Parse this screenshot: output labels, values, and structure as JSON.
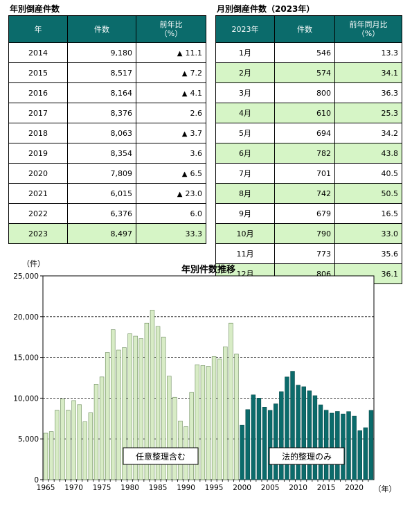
{
  "annual": {
    "title": "年別倒産件数",
    "headers": [
      "年",
      "件数",
      "前年比",
      "（%）"
    ],
    "rows": [
      {
        "year": "2014",
        "count": "9,180",
        "mark": "▲",
        "change": "11.1",
        "highlight": false
      },
      {
        "year": "2015",
        "count": "8,517",
        "mark": "▲",
        "change": "7.2",
        "highlight": false
      },
      {
        "year": "2016",
        "count": "8,164",
        "mark": "▲",
        "change": "4.1",
        "highlight": false
      },
      {
        "year": "2017",
        "count": "8,376",
        "mark": "",
        "change": "2.6",
        "highlight": false
      },
      {
        "year": "2018",
        "count": "8,063",
        "mark": "▲",
        "change": "3.7",
        "highlight": false
      },
      {
        "year": "2019",
        "count": "8,354",
        "mark": "",
        "change": "3.6",
        "highlight": false
      },
      {
        "year": "2020",
        "count": "7,809",
        "mark": "▲",
        "change": "6.5",
        "highlight": false
      },
      {
        "year": "2021",
        "count": "6,015",
        "mark": "▲",
        "change": "23.0",
        "highlight": false
      },
      {
        "year": "2022",
        "count": "6,376",
        "mark": "",
        "change": "6.0",
        "highlight": false
      },
      {
        "year": "2023",
        "count": "8,497",
        "mark": "",
        "change": "33.3",
        "highlight": true
      }
    ]
  },
  "monthly": {
    "title": "月別倒産件数（2023年）",
    "headers": [
      "2023年",
      "件数",
      "前年同月比",
      "（%）"
    ],
    "rows": [
      {
        "month": "1月",
        "count": "546",
        "change": "13.3",
        "highlight": false
      },
      {
        "month": "2月",
        "count": "574",
        "change": "34.1",
        "highlight": true
      },
      {
        "month": "3月",
        "count": "800",
        "change": "36.3",
        "highlight": false
      },
      {
        "month": "4月",
        "count": "610",
        "change": "25.3",
        "highlight": true
      },
      {
        "month": "5月",
        "count": "694",
        "change": "34.2",
        "highlight": false
      },
      {
        "month": "6月",
        "count": "782",
        "change": "43.8",
        "highlight": true
      },
      {
        "month": "7月",
        "count": "701",
        "change": "40.5",
        "highlight": false
      },
      {
        "month": "8月",
        "count": "742",
        "change": "50.5",
        "highlight": true
      },
      {
        "month": "9月",
        "count": "679",
        "change": "16.5",
        "highlight": false
      },
      {
        "month": "10月",
        "count": "790",
        "change": "33.0",
        "highlight": true
      },
      {
        "month": "11月",
        "count": "773",
        "change": "35.6",
        "highlight": false
      },
      {
        "month": "12月",
        "count": "806",
        "change": "36.1",
        "highlight": true
      }
    ]
  },
  "chart_data": {
    "type": "bar",
    "title": "年別件数推移",
    "ylabel": "（件）",
    "xlabel": "（年）",
    "ylim": [
      0,
      25000
    ],
    "yticks": [
      "0",
      "5,000",
      "10,000",
      "15,000",
      "20,000",
      "25,000"
    ],
    "xticks": [
      "1965",
      "1970",
      "1975",
      "1980",
      "1985",
      "1990",
      "1995",
      "2000",
      "2005",
      "2010",
      "2015",
      "2020"
    ],
    "annotations": [
      "任意整理含む",
      "法的整理のみ"
    ],
    "colors": {
      "voluntary": "#d8ecc6",
      "legal": "#0b6b6b",
      "grid": "#000000"
    },
    "x": [
      1965,
      1966,
      1967,
      1968,
      1969,
      1970,
      1971,
      1972,
      1973,
      1974,
      1975,
      1976,
      1977,
      1978,
      1979,
      1980,
      1981,
      1982,
      1983,
      1984,
      1985,
      1986,
      1987,
      1988,
      1989,
      1990,
      1991,
      1992,
      1993,
      1994,
      1995,
      1996,
      1997,
      1998,
      1999,
      2000,
      2001,
      2002,
      2003,
      2004,
      2005,
      2006,
      2007,
      2008,
      2009,
      2010,
      2011,
      2012,
      2013,
      2014,
      2015,
      2016,
      2017,
      2018,
      2019,
      2020,
      2021,
      2022,
      2023
    ],
    "series": [
      {
        "name": "任意整理含む",
        "values": [
          5700,
          5900,
          8500,
          9900,
          8500,
          9700,
          9200,
          7100,
          8200,
          11700,
          12600,
          15600,
          18400,
          15900,
          16200,
          17900,
          17600,
          17300,
          19200,
          20800,
          18800,
          17500,
          12700,
          10100,
          7200,
          6500,
          10700,
          14100,
          14000,
          13900,
          15100,
          14800,
          16300,
          19200,
          15400,
          null,
          null,
          null,
          null,
          null,
          null,
          null,
          null,
          null,
          null,
          null,
          null,
          null,
          null,
          null,
          null,
          null,
          null,
          null,
          null,
          null,
          null,
          null,
          null
        ]
      },
      {
        "name": "法的整理のみ",
        "values": [
          null,
          null,
          null,
          null,
          null,
          null,
          null,
          null,
          null,
          null,
          null,
          null,
          null,
          null,
          null,
          null,
          null,
          null,
          null,
          null,
          null,
          null,
          null,
          null,
          null,
          null,
          null,
          null,
          null,
          null,
          null,
          null,
          null,
          null,
          null,
          6700,
          8600,
          10400,
          10000,
          8900,
          8500,
          9300,
          10800,
          12600,
          13300,
          11600,
          11400,
          10900,
          10300,
          9180,
          8517,
          8164,
          8376,
          8063,
          8354,
          7809,
          6015,
          6376,
          8497
        ]
      }
    ]
  }
}
